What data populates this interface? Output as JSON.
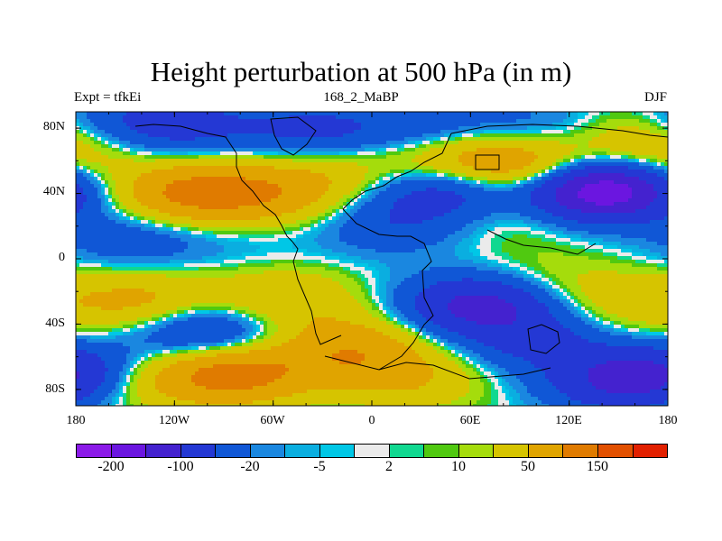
{
  "title": "Height perturbation at 500 hPa (in m)",
  "left_string": "Expt = tfkEi",
  "center_string": "168_2_MaBP",
  "right_string": "DJF",
  "chart_data": {
    "type": "heatmap",
    "title": "Height perturbation at 500 hPa (in m)",
    "x_ticks": [
      "180",
      "120W",
      "60W",
      "0",
      "60E",
      "120E",
      "180"
    ],
    "y_ticks": [
      "80N",
      "40N",
      "0",
      "40S",
      "80S"
    ],
    "xlim": [
      -180,
      180
    ],
    "ylim": [
      -90,
      90
    ],
    "colorbar": {
      "colors": [
        "#8b1ae8",
        "#6b16e0",
        "#4422cf",
        "#2438d4",
        "#1057d6",
        "#1a87e0",
        "#0aaee0",
        "#00c7e6",
        "#ebebeb",
        "#10d890",
        "#50c910",
        "#a5dc0c",
        "#d6c400",
        "#e0a400",
        "#e07b00",
        "#e25000",
        "#e22000"
      ],
      "labels": [
        "-200",
        "-100",
        "-20",
        "-5",
        "2",
        "10",
        "50",
        "150"
      ]
    },
    "anomalies": [
      {
        "lon": -165,
        "lat": 83,
        "value": -40
      },
      {
        "lon": -115,
        "lat": 82,
        "value": -60
      },
      {
        "lon": -35,
        "lat": 78,
        "value": -60
      },
      {
        "lon": 35,
        "lat": 77,
        "value": -50
      },
      {
        "lon": 100,
        "lat": 80,
        "value": -30
      },
      {
        "lon": 165,
        "lat": 80,
        "value": 30
      },
      {
        "lon": -110,
        "lat": 40,
        "value": 110
      },
      {
        "lon": -60,
        "lat": 40,
        "value": 70
      },
      {
        "lon": 45,
        "lat": 63,
        "value": 60
      },
      {
        "lon": 90,
        "lat": 57,
        "value": 90
      },
      {
        "lon": 172,
        "lat": 63,
        "value": 50
      },
      {
        "lon": -20,
        "lat": 55,
        "value": 30
      },
      {
        "lon": 140,
        "lat": 42,
        "value": -200
      },
      {
        "lon": 45,
        "lat": 42,
        "value": -80
      },
      {
        "lon": 10,
        "lat": 20,
        "value": -40
      },
      {
        "lon": 88,
        "lat": 26,
        "value": 20
      },
      {
        "lon": -145,
        "lat": 12,
        "value": -40
      },
      {
        "lon": -80,
        "lat": 10,
        "value": -10
      },
      {
        "lon": -140,
        "lat": -26,
        "value": 60
      },
      {
        "lon": -55,
        "lat": -24,
        "value": 50
      },
      {
        "lon": 150,
        "lat": -24,
        "value": 30
      },
      {
        "lon": 65,
        "lat": -28,
        "value": -120
      },
      {
        "lon": 100,
        "lat": -50,
        "value": -60
      },
      {
        "lon": -100,
        "lat": -46,
        "value": -80
      },
      {
        "lon": -20,
        "lat": -46,
        "value": 30
      },
      {
        "lon": -10,
        "lat": -60,
        "value": 70
      },
      {
        "lon": -85,
        "lat": -70,
        "value": 130
      },
      {
        "lon": -150,
        "lat": -74,
        "value": 60
      },
      {
        "lon": -175,
        "lat": -70,
        "value": -90
      },
      {
        "lon": 150,
        "lat": -75,
        "value": -90
      },
      {
        "lon": 25,
        "lat": -75,
        "value": 40
      },
      {
        "lon": 100,
        "lat": -12,
        "value": 20
      },
      {
        "lon": 160,
        "lat": -40,
        "value": 10
      }
    ]
  }
}
